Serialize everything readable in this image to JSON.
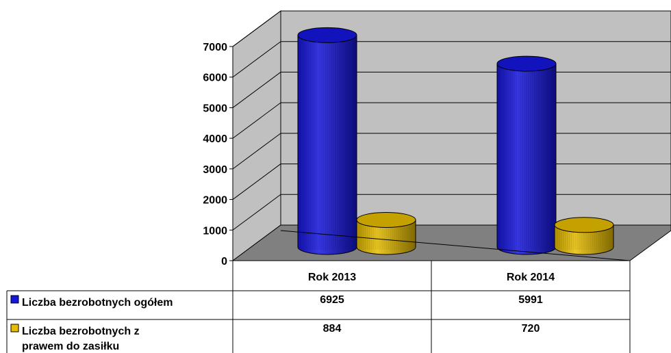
{
  "chart_data": {
    "type": "bar",
    "style": "3d-cylinder",
    "categories": [
      "Rok 2013",
      "Rok 2014"
    ],
    "series": [
      {
        "name": "Liczba bezrobotnych ogółem",
        "name_lines": [
          "Liczba bezrobotnych ogółem"
        ],
        "values": [
          6925,
          5991
        ],
        "color": "#1616e0"
      },
      {
        "name": "Liczba bezrobotnych z prawem do zasiłku",
        "name_lines": [
          "Liczba bezrobotnych z",
          "prawem do zasiłku"
        ],
        "values": [
          884,
          720
        ],
        "color": "#e8bd00"
      }
    ],
    "yticks": [
      "0",
      "1000",
      "2000",
      "3000",
      "4000",
      "5000",
      "6000",
      "7000"
    ],
    "ylim": [
      0,
      7000
    ],
    "grid": true,
    "legend": "data-table",
    "colors": {
      "back_wall": "#c0c0c0",
      "floor": "#808080",
      "grid": "#000000"
    }
  }
}
